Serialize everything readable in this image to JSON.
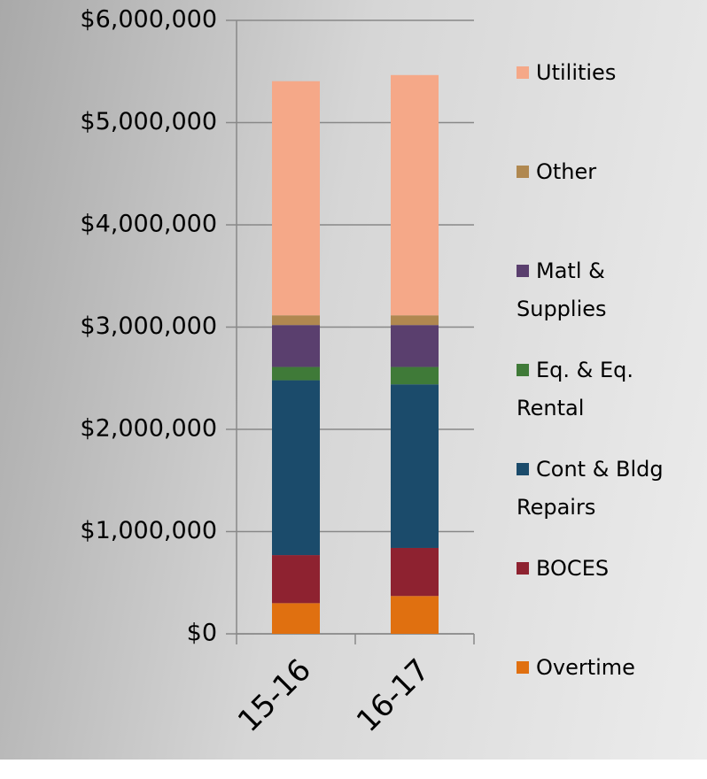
{
  "chart_data": {
    "type": "stacked_bar",
    "categories": [
      "15-16",
      "16-17"
    ],
    "series": [
      {
        "name": "Overtime",
        "color": "#e07010",
        "values": [
          300000,
          370000
        ]
      },
      {
        "name": "BOCES",
        "color": "#8e2230",
        "values": [
          470000,
          470000
        ]
      },
      {
        "name": "Cont & Bldg Repairs",
        "color": "#1b4b6b",
        "values": [
          1710000,
          1600000
        ]
      },
      {
        "name": "Eq. & Eq. Rental",
        "color": "#3f7a38",
        "values": [
          130000,
          170000
        ]
      },
      {
        "name": "Matl & Supplies",
        "color": "#5a3f6e",
        "values": [
          410000,
          410000
        ]
      },
      {
        "name": "Other",
        "color": "#b08850",
        "values": [
          95000,
          95000
        ]
      },
      {
        "name": "Utilities",
        "color": "#f5a888",
        "values": [
          2290000,
          2350000
        ]
      }
    ],
    "ylim": [
      0,
      6000000
    ],
    "yticks": [
      {
        "value": 0,
        "label": "$0"
      },
      {
        "value": 1000000,
        "label": "$1,000,000"
      },
      {
        "value": 2000000,
        "label": "$2,000,000"
      },
      {
        "value": 3000000,
        "label": "$3,000,000"
      },
      {
        "value": 4000000,
        "label": "$4,000,000"
      },
      {
        "value": 5000000,
        "label": "$5,000,000"
      },
      {
        "value": 6000000,
        "label": "$6,000,000"
      }
    ],
    "grid": true,
    "legend": "right"
  }
}
